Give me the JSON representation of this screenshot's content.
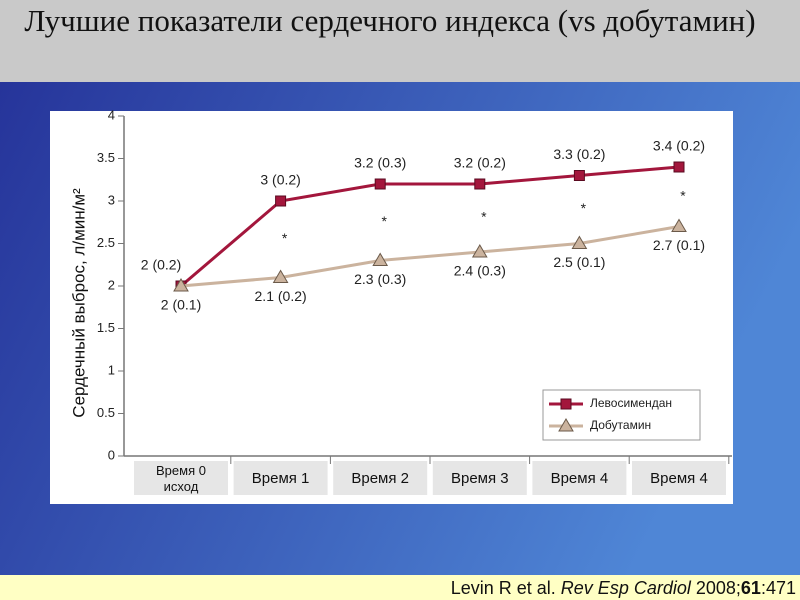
{
  "chart_data": {
    "type": "line",
    "title": "Лучшие показатели сердечного индекса (vs добутамин)",
    "y_label": "Сердечный выброс, л/мин/м²",
    "categories": [
      "Время 0 исход",
      "Время 1",
      "Время 2",
      "Время 3",
      "Время 4",
      "Время 4"
    ],
    "series": [
      {
        "name": "Левосимендан",
        "color": "#a3163c",
        "marker": "square",
        "values": [
          2,
          3,
          3.2,
          3.2,
          3.3,
          3.4
        ],
        "value_labels": [
          "2 (0.2)",
          "3 (0.2)",
          "3.2 (0.3)",
          "3.2 (0.2)",
          "3.3 (0.2)",
          "3.4 (0.2)"
        ]
      },
      {
        "name": "Добутамин",
        "color": "#cbb39e",
        "marker": "triangle",
        "values": [
          2,
          2.1,
          2.3,
          2.4,
          2.5,
          2.7
        ],
        "value_labels": [
          "2 (0.1)",
          "2.1 (0.2)",
          "2.3 (0.3)",
          "2.4 (0.3)",
          "2.5 (0.1)",
          "2.7 (0.1)"
        ]
      }
    ],
    "significance_marks": [
      null,
      "*",
      "*",
      "*",
      "*",
      "*"
    ],
    "ylim": [
      0,
      4
    ],
    "yticks": [
      0,
      0.5,
      1,
      1.5,
      2,
      2.5,
      3,
      3.5,
      4
    ],
    "grid": false,
    "legend": "lower-right"
  },
  "citation": {
    "authors": "Levin R et al.",
    "journal": "Rev Esp Cardiol",
    "year": "2008;",
    "volume": "61",
    "pages": ":471"
  }
}
